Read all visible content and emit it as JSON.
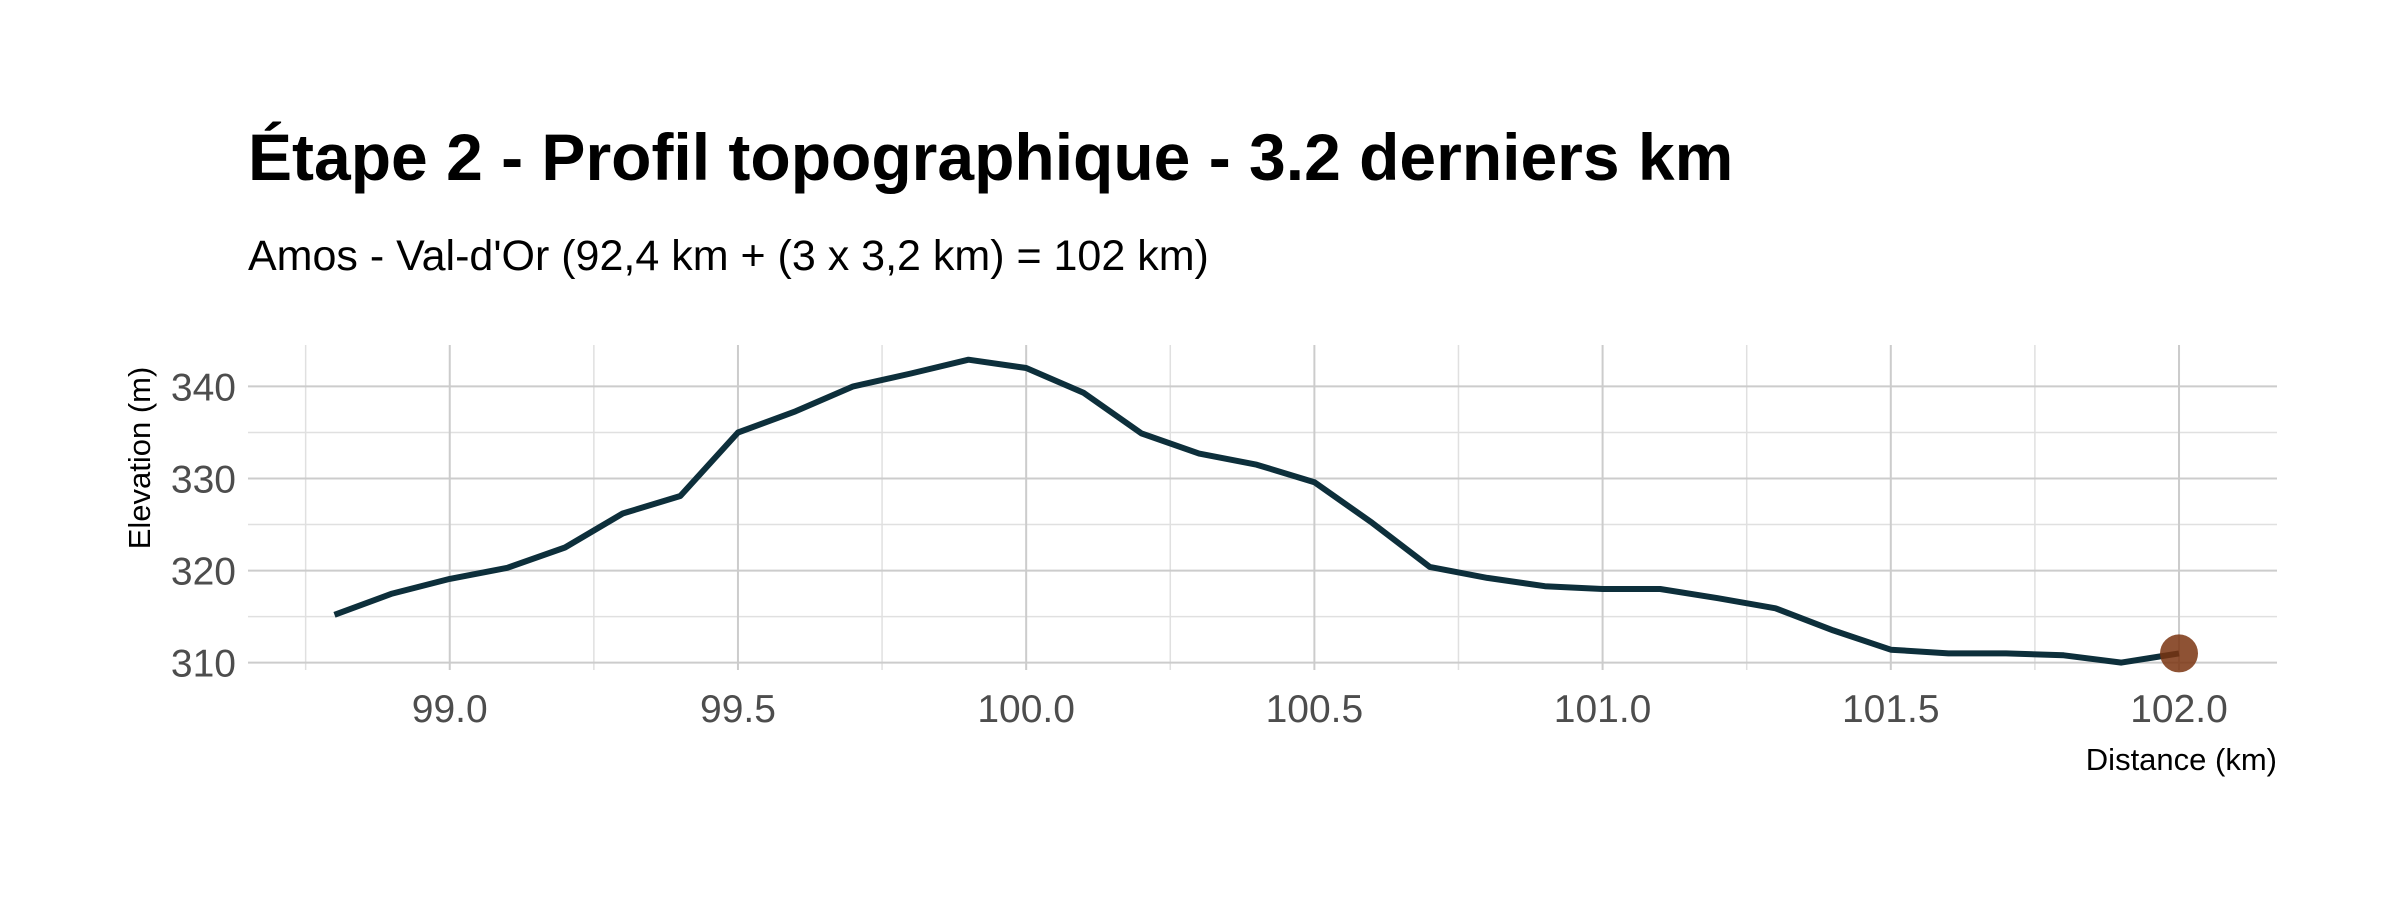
{
  "chart_data": {
    "type": "line",
    "title": "Étape 2 - Profil topographique - 3.2 derniers km",
    "subtitle": "Amos - Val-d'Or (92,4 km + (3 x 3,2 km) = 102 km)",
    "xlabel": "Distance (km)",
    "ylabel": "Elevation (m)",
    "xlim": [
      98.65,
      102.17
    ],
    "ylim": [
      309.2,
      344.5
    ],
    "x_ticks": [
      99.0,
      99.5,
      100.0,
      100.5,
      101.0,
      101.5,
      102.0
    ],
    "x_tick_labels": [
      "99.0",
      "99.5",
      "100.0",
      "100.5",
      "101.0",
      "101.5",
      "102.0"
    ],
    "y_ticks": [
      310,
      320,
      330,
      340
    ],
    "y_tick_labels": [
      "310",
      "320",
      "330",
      "340"
    ],
    "grid": true,
    "line_color": "#0d2f3b",
    "marker_color": "#7a3410",
    "series": [
      {
        "x": [
          98.8,
          98.9,
          99.0,
          99.1,
          99.2,
          99.3,
          99.4,
          99.5,
          99.6,
          99.7,
          99.8,
          99.9,
          100.0,
          100.1,
          100.2,
          100.3,
          100.4,
          100.5,
          100.6,
          100.7,
          100.8,
          100.9,
          101.0,
          101.1,
          101.2,
          101.3,
          101.4,
          101.5,
          101.6,
          101.7,
          101.8,
          101.9,
          102.0
        ],
        "y": [
          315.2,
          317.5,
          319.1,
          320.3,
          322.5,
          326.2,
          328.1,
          335.0,
          337.3,
          340.0,
          341.4,
          342.9,
          342.0,
          339.3,
          334.9,
          332.7,
          331.5,
          329.6,
          325.2,
          320.4,
          319.2,
          318.3,
          318.0,
          318.0,
          317.0,
          315.9,
          313.5,
          311.4,
          311.0,
          311.0,
          310.8,
          310.0,
          311.0
        ]
      }
    ],
    "highlight_point": {
      "x": 102.0,
      "y": 311.0
    }
  }
}
